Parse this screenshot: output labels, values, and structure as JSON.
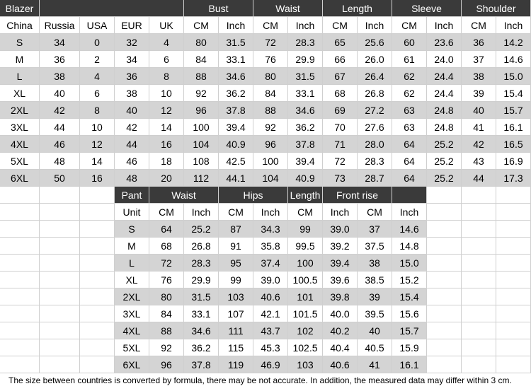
{
  "blazer": {
    "title": "Blazer",
    "groups": [
      "Bust",
      "Waist",
      "Length",
      "Sleeve",
      "Shoulder"
    ],
    "columns": [
      "China",
      "Russia",
      "USA",
      "EUR",
      "UK",
      "CM",
      "Inch",
      "CM",
      "Inch",
      "CM",
      "Inch",
      "CM",
      "Inch",
      "CM",
      "Inch"
    ],
    "rows": [
      [
        "S",
        "34",
        "0",
        "32",
        "4",
        "80",
        "31.5",
        "72",
        "28.3",
        "65",
        "25.6",
        "60",
        "23.6",
        "36",
        "14.2"
      ],
      [
        "M",
        "36",
        "2",
        "34",
        "6",
        "84",
        "33.1",
        "76",
        "29.9",
        "66",
        "26.0",
        "61",
        "24.0",
        "37",
        "14.6"
      ],
      [
        "L",
        "38",
        "4",
        "36",
        "8",
        "88",
        "34.6",
        "80",
        "31.5",
        "67",
        "26.4",
        "62",
        "24.4",
        "38",
        "15.0"
      ],
      [
        "XL",
        "40",
        "6",
        "38",
        "10",
        "92",
        "36.2",
        "84",
        "33.1",
        "68",
        "26.8",
        "62",
        "24.4",
        "39",
        "15.4"
      ],
      [
        "2XL",
        "42",
        "8",
        "40",
        "12",
        "96",
        "37.8",
        "88",
        "34.6",
        "69",
        "27.2",
        "63",
        "24.8",
        "40",
        "15.7"
      ],
      [
        "3XL",
        "44",
        "10",
        "42",
        "14",
        "100",
        "39.4",
        "92",
        "36.2",
        "70",
        "27.6",
        "63",
        "24.8",
        "41",
        "16.1"
      ],
      [
        "4XL",
        "46",
        "12",
        "44",
        "16",
        "104",
        "40.9",
        "96",
        "37.8",
        "71",
        "28.0",
        "64",
        "25.2",
        "42",
        "16.5"
      ],
      [
        "5XL",
        "48",
        "14",
        "46",
        "18",
        "108",
        "42.5",
        "100",
        "39.4",
        "72",
        "28.3",
        "64",
        "25.2",
        "43",
        "16.9"
      ],
      [
        "6XL",
        "50",
        "16",
        "48",
        "20",
        "112",
        "44.1",
        "104",
        "40.9",
        "73",
        "28.7",
        "64",
        "25.2",
        "44",
        "17.3"
      ]
    ]
  },
  "pant": {
    "title": "Pant",
    "groups": [
      "Waist",
      "Hips",
      "Length",
      "Front rise"
    ],
    "columns": [
      "Unit",
      "CM",
      "Inch",
      "CM",
      "Inch",
      "CM",
      "Inch",
      "CM",
      "Inch"
    ],
    "rows": [
      [
        "S",
        "64",
        "25.2",
        "87",
        "34.3",
        "99",
        "39.0",
        "37",
        "14.6"
      ],
      [
        "M",
        "68",
        "26.8",
        "91",
        "35.8",
        "99.5",
        "39.2",
        "37.5",
        "14.8"
      ],
      [
        "L",
        "72",
        "28.3",
        "95",
        "37.4",
        "100",
        "39.4",
        "38",
        "15.0"
      ],
      [
        "XL",
        "76",
        "29.9",
        "99",
        "39.0",
        "100.5",
        "39.6",
        "38.5",
        "15.2"
      ],
      [
        "2XL",
        "80",
        "31.5",
        "103",
        "40.6",
        "101",
        "39.8",
        "39",
        "15.4"
      ],
      [
        "3XL",
        "84",
        "33.1",
        "107",
        "42.1",
        "101.5",
        "40.0",
        "39.5",
        "15.6"
      ],
      [
        "4XL",
        "88",
        "34.6",
        "111",
        "43.7",
        "102",
        "40.2",
        "40",
        "15.7"
      ],
      [
        "5XL",
        "92",
        "36.2",
        "115",
        "45.3",
        "102.5",
        "40.4",
        "40.5",
        "15.9"
      ],
      [
        "6XL",
        "96",
        "37.8",
        "119",
        "46.9",
        "103",
        "40.6",
        "41",
        "16.1"
      ]
    ]
  },
  "note": "The size between countries is converted by formula, there may be not accurate. In addition, the measured data may differ within 3 cm.",
  "colors": {
    "header": "#3a3a3a",
    "stripe": "#d4d4d4",
    "grid": "#cfcfcf"
  }
}
